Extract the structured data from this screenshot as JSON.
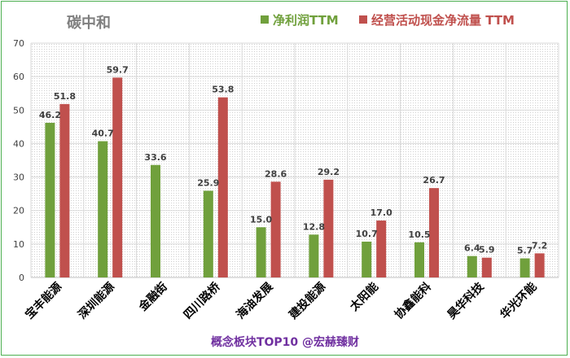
{
  "chart_data": {
    "type": "bar",
    "title": "碳中和",
    "categories": [
      "宝丰能源",
      "深圳能源",
      "金融街",
      "四川路桥",
      "海油发展",
      "建投能源",
      "太阳能",
      "协鑫能科",
      "昊华科技",
      "华光环能"
    ],
    "series": [
      {
        "name": "净利润TTM",
        "color": "#70a03c",
        "values": [
          46.2,
          40.7,
          33.6,
          25.9,
          15.0,
          12.8,
          10.7,
          10.5,
          6.4,
          5.7
        ],
        "labels": [
          "46.2",
          "40.7",
          "33.6",
          "25.9",
          "15.0",
          "12.8",
          "10.7",
          "10.5",
          "6.4",
          "5.7"
        ]
      },
      {
        "name": "经营活动现金净流量 TTM",
        "color": "#c0504d",
        "values": [
          51.8,
          59.7,
          null,
          53.8,
          28.6,
          29.2,
          17.0,
          26.7,
          5.9,
          7.2
        ],
        "labels": [
          "51.8",
          "59.7",
          "",
          "53.8",
          "28.6",
          "29.2",
          "17.0",
          "26.7",
          "5.9",
          "7.2"
        ]
      }
    ],
    "ylim": [
      0,
      70
    ],
    "yticks": [
      "0",
      "10",
      "20",
      "30",
      "40",
      "50",
      "60",
      "70"
    ],
    "grid": true,
    "legend_position": "top"
  },
  "footer": "概念板块TOP10  @宏赫臻财"
}
